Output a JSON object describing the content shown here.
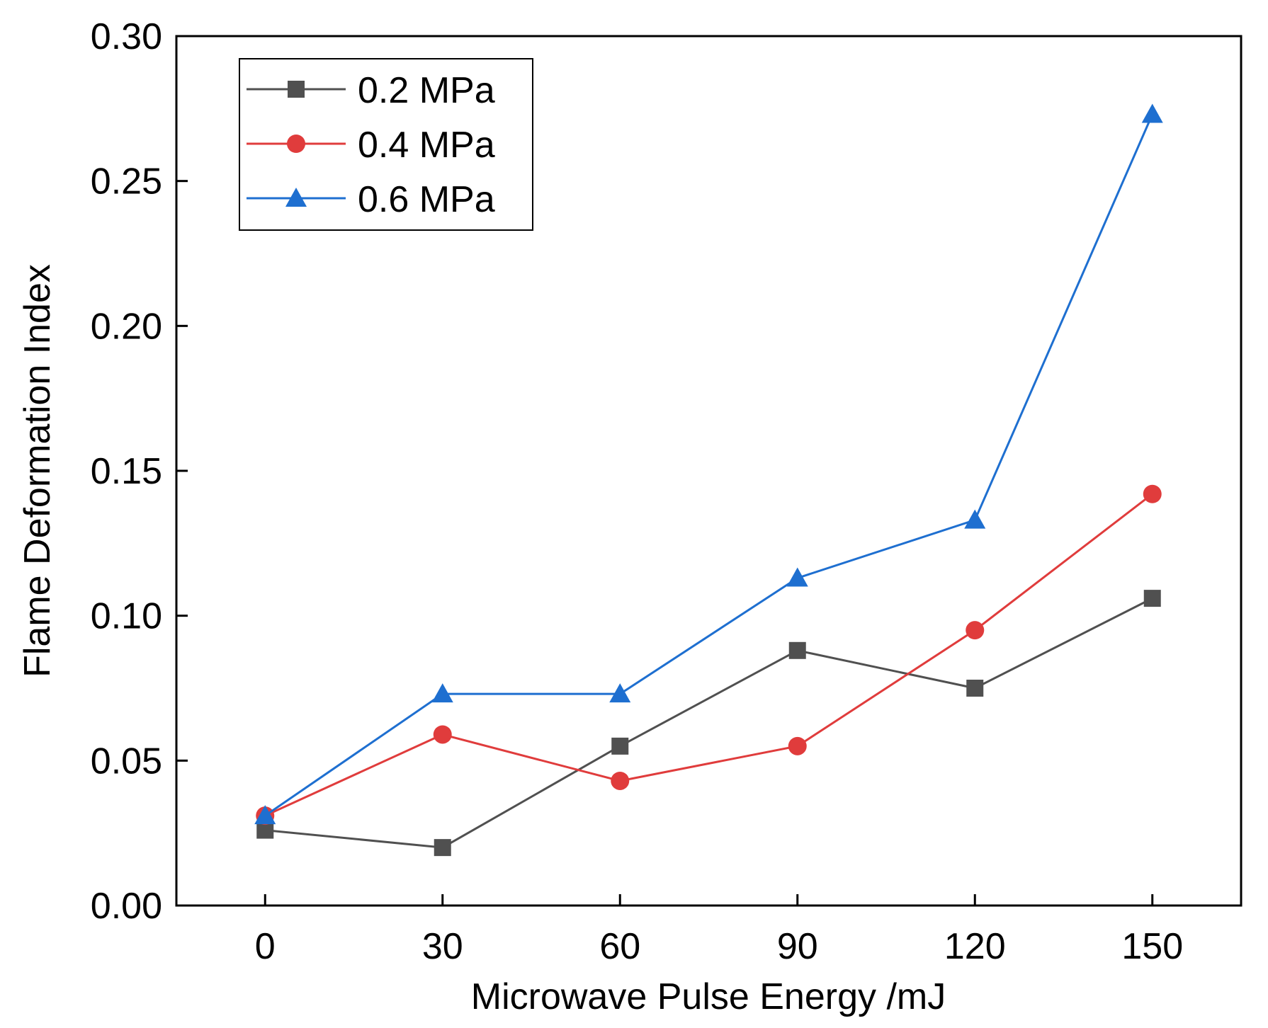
{
  "chart_data": {
    "type": "line",
    "title": "",
    "xlabel": "Microwave Pulse Energy /mJ",
    "ylabel": "Flame Deformation Index",
    "x": [
      0,
      30,
      60,
      90,
      120,
      150
    ],
    "xlim": [
      -15,
      165
    ],
    "ylim": [
      0,
      0.3
    ],
    "xticks": [
      "0",
      "30",
      "60",
      "90",
      "120",
      "150"
    ],
    "yticks": [
      "0.00",
      "0.05",
      "0.10",
      "0.15",
      "0.20",
      "0.25",
      "0.30"
    ],
    "grid": false,
    "legend_position": "top-left",
    "series": [
      {
        "name": "0.2 MPa",
        "color": "#505050",
        "marker": "square",
        "values": [
          0.026,
          0.02,
          0.055,
          0.088,
          0.075,
          0.106
        ]
      },
      {
        "name": "0.4 MPa",
        "color": "#e03c3c",
        "marker": "circle",
        "values": [
          0.031,
          0.059,
          0.043,
          0.055,
          0.095,
          0.142
        ]
      },
      {
        "name": "0.6 MPa",
        "color": "#1e6fd0",
        "marker": "triangle",
        "values": [
          0.031,
          0.073,
          0.073,
          0.113,
          0.133,
          0.273
        ]
      }
    ]
  }
}
